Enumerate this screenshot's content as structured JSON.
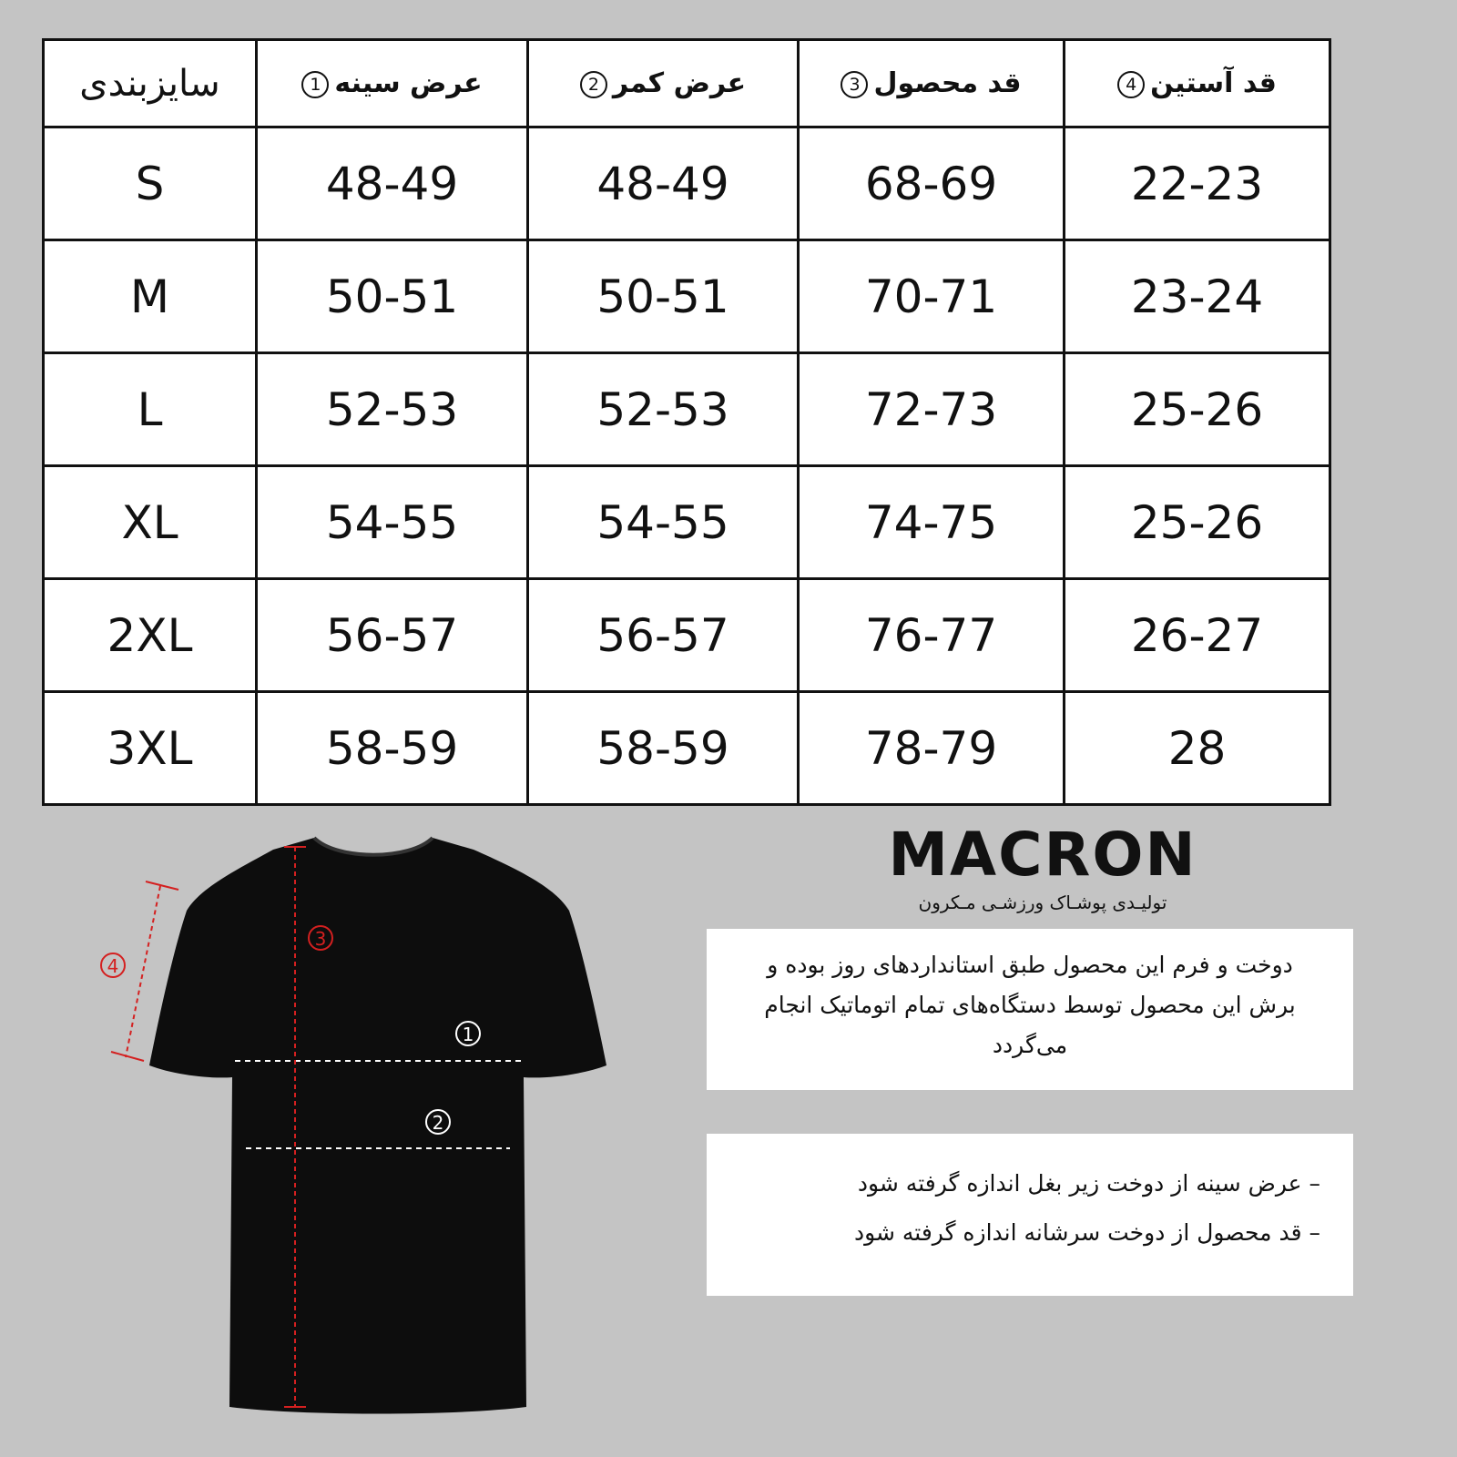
{
  "table": {
    "headers": [
      {
        "label": "سایزبندی",
        "num": ""
      },
      {
        "label": "عرض سینه",
        "num": "1"
      },
      {
        "label": "عرض کمر",
        "num": "2"
      },
      {
        "label": "قد محصول",
        "num": "3"
      },
      {
        "label": "قد آستین",
        "num": "4"
      }
    ],
    "rows": [
      [
        "S",
        "48-49",
        "48-49",
        "68-69",
        "22-23"
      ],
      [
        "M",
        "50-51",
        "50-51",
        "70-71",
        "23-24"
      ],
      [
        "L",
        "52-53",
        "52-53",
        "72-73",
        "25-26"
      ],
      [
        "XL",
        "54-55",
        "54-55",
        "74-75",
        "25-26"
      ],
      [
        "2XL",
        "56-57",
        "56-57",
        "76-77",
        "26-27"
      ],
      [
        "3XL",
        "58-59",
        "58-59",
        "78-79",
        "28"
      ]
    ]
  },
  "logo": {
    "word": "MACRON",
    "subtitle": "تولیـدی پوشـاک ورزشـی مـکرون"
  },
  "diagram": {
    "markers": [
      "1",
      "2",
      "3",
      "4"
    ],
    "accent": "#d42020",
    "shirt_color": "#0d0d0d"
  },
  "notes": {
    "description": "دوخت و فرم این محصول طبق استانداردهای روز بوده و برش این محصول توسط دستگاه‌های تمام اتوماتیک انجام می‌گردد",
    "bullets": [
      "– عرض سینه از دوخت زیر بغل اندازه گرفته شود",
      "– قد محصول از دوخت سرشانه اندازه گرفته شود"
    ]
  }
}
